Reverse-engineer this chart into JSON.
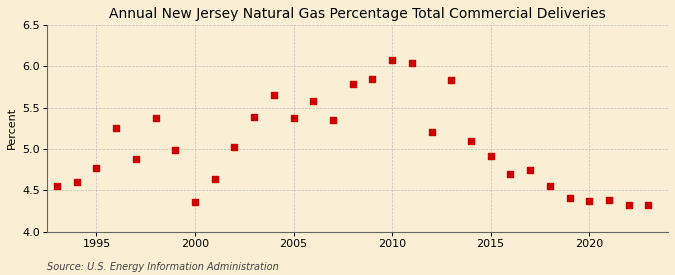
{
  "title": "Annual New Jersey Natural Gas Percentage Total Commercial Deliveries",
  "ylabel": "Percent",
  "source": "Source: U.S. Energy Information Administration",
  "years": [
    1993,
    1994,
    1995,
    1996,
    1997,
    1998,
    1999,
    2000,
    2001,
    2002,
    2003,
    2004,
    2005,
    2006,
    2007,
    2008,
    2009,
    2010,
    2011,
    2012,
    2013,
    2014,
    2015,
    2016,
    2017,
    2018,
    2019,
    2020,
    2021,
    2022,
    2023
  ],
  "values": [
    4.55,
    4.6,
    4.77,
    5.25,
    4.88,
    5.37,
    4.99,
    4.36,
    4.64,
    5.02,
    5.39,
    5.65,
    5.38,
    5.58,
    5.35,
    5.78,
    5.85,
    6.08,
    6.04,
    5.21,
    5.83,
    5.1,
    4.92,
    4.7,
    4.75,
    4.55,
    4.41,
    4.37,
    4.39,
    4.33,
    4.33
  ],
  "marker_color": "#cc0000",
  "marker_size": 18,
  "ylim": [
    4.0,
    6.5
  ],
  "yticks": [
    4.0,
    4.5,
    5.0,
    5.5,
    6.0,
    6.5
  ],
  "xlim": [
    1992.5,
    2024
  ],
  "xticks": [
    1995,
    2000,
    2005,
    2010,
    2015,
    2020
  ],
  "bg_color": "#faefd4",
  "grid_color": "#aaaaaa",
  "title_fontsize": 10,
  "label_fontsize": 8,
  "tick_fontsize": 8,
  "source_fontsize": 7
}
